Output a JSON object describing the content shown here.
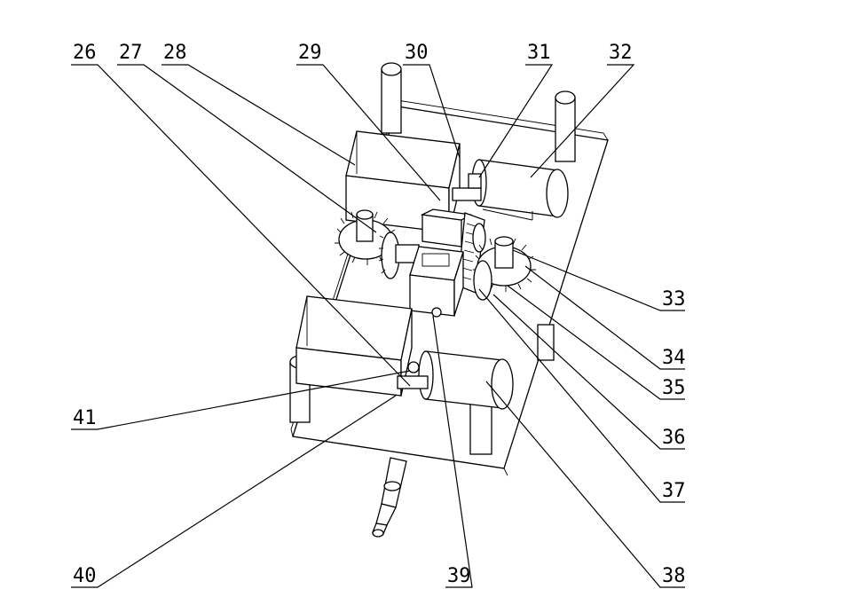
{
  "callouts": {
    "c26": "26",
    "c27": "27",
    "c28": "28",
    "c29": "29",
    "c30": "30",
    "c31": "31",
    "c32": "32",
    "c33": "33",
    "c34": "34",
    "c35": "35",
    "c36": "36",
    "c37": "37",
    "c38": "38",
    "c39": "39",
    "c40": "40",
    "c41": "41"
  }
}
